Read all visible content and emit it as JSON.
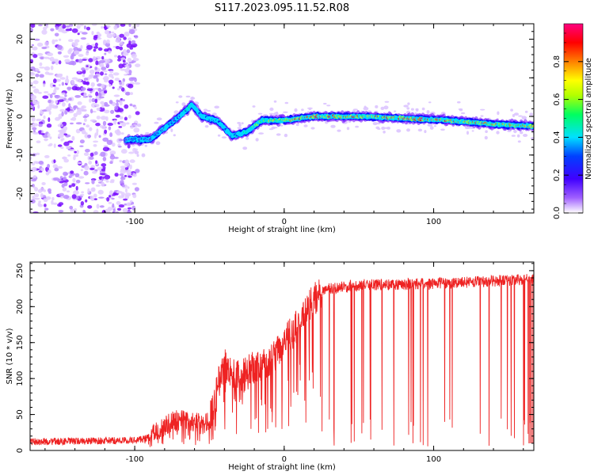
{
  "title": "S117.2023.095.11.52.R08",
  "chart_data": [
    {
      "type": "heatmap",
      "xlabel": "Height of straight line (km)",
      "ylabel": "Frequency (Hz)",
      "xlim": [
        -170,
        167
      ],
      "ylim": [
        -25,
        24
      ],
      "x_ticks": [
        -100,
        0,
        100
      ],
      "y_ticks": [
        -20,
        -10,
        0,
        10,
        20
      ],
      "colorbar": {
        "label": "Normalized spectral amplitude",
        "range": [
          0,
          1
        ],
        "ticks": [
          0.0,
          0.2,
          0.4,
          0.6,
          0.8
        ],
        "colormap": [
          "#ffffff",
          "#8a00ff",
          "#0000ff",
          "#00ffff",
          "#00ff00",
          "#ffff00",
          "#ff8000",
          "#ff0000",
          "#ff0080"
        ]
      },
      "ridge": {
        "description_points_x": [
          -105,
          -90,
          -80,
          -70,
          -62,
          -55,
          -45,
          -35,
          -25,
          -15,
          0,
          20,
          50,
          80,
          110,
          140,
          165
        ],
        "frequency_hz": [
          -6,
          -6,
          -3,
          0,
          3,
          0,
          -1,
          -5,
          -4,
          -1,
          -1,
          0,
          0,
          -0.5,
          -1,
          -2,
          -2.5
        ],
        "peak_amplitude": [
          0.3,
          0.35,
          0.35,
          0.4,
          0.5,
          0.45,
          0.4,
          0.45,
          0.5,
          0.6,
          0.8,
          0.9,
          0.85,
          0.85,
          0.9,
          0.8,
          0.75
        ]
      },
      "noise_region_x": [
        -170,
        -100
      ]
    },
    {
      "type": "line",
      "xlabel": "Height of straight line (km)",
      "ylabel": "SNR (10 * v/v)",
      "xlim": [
        -170,
        167
      ],
      "ylim": [
        0,
        262
      ],
      "x_ticks": [
        -100,
        0,
        100
      ],
      "y_ticks": [
        0,
        50,
        100,
        150,
        200,
        250
      ],
      "series_color": "#ee2222",
      "envelope": {
        "x": [
          -170,
          -100,
          -90,
          -80,
          -70,
          -60,
          -50,
          -45,
          -40,
          -30,
          -20,
          -10,
          0,
          10,
          20,
          25,
          30,
          50,
          100,
          167
        ],
        "snr": [
          12,
          14,
          18,
          35,
          45,
          38,
          40,
          85,
          120,
          100,
          115,
          120,
          150,
          175,
          210,
          220,
          225,
          230,
          232,
          238
        ]
      },
      "dropouts_region_x": [
        25,
        167
      ]
    }
  ]
}
